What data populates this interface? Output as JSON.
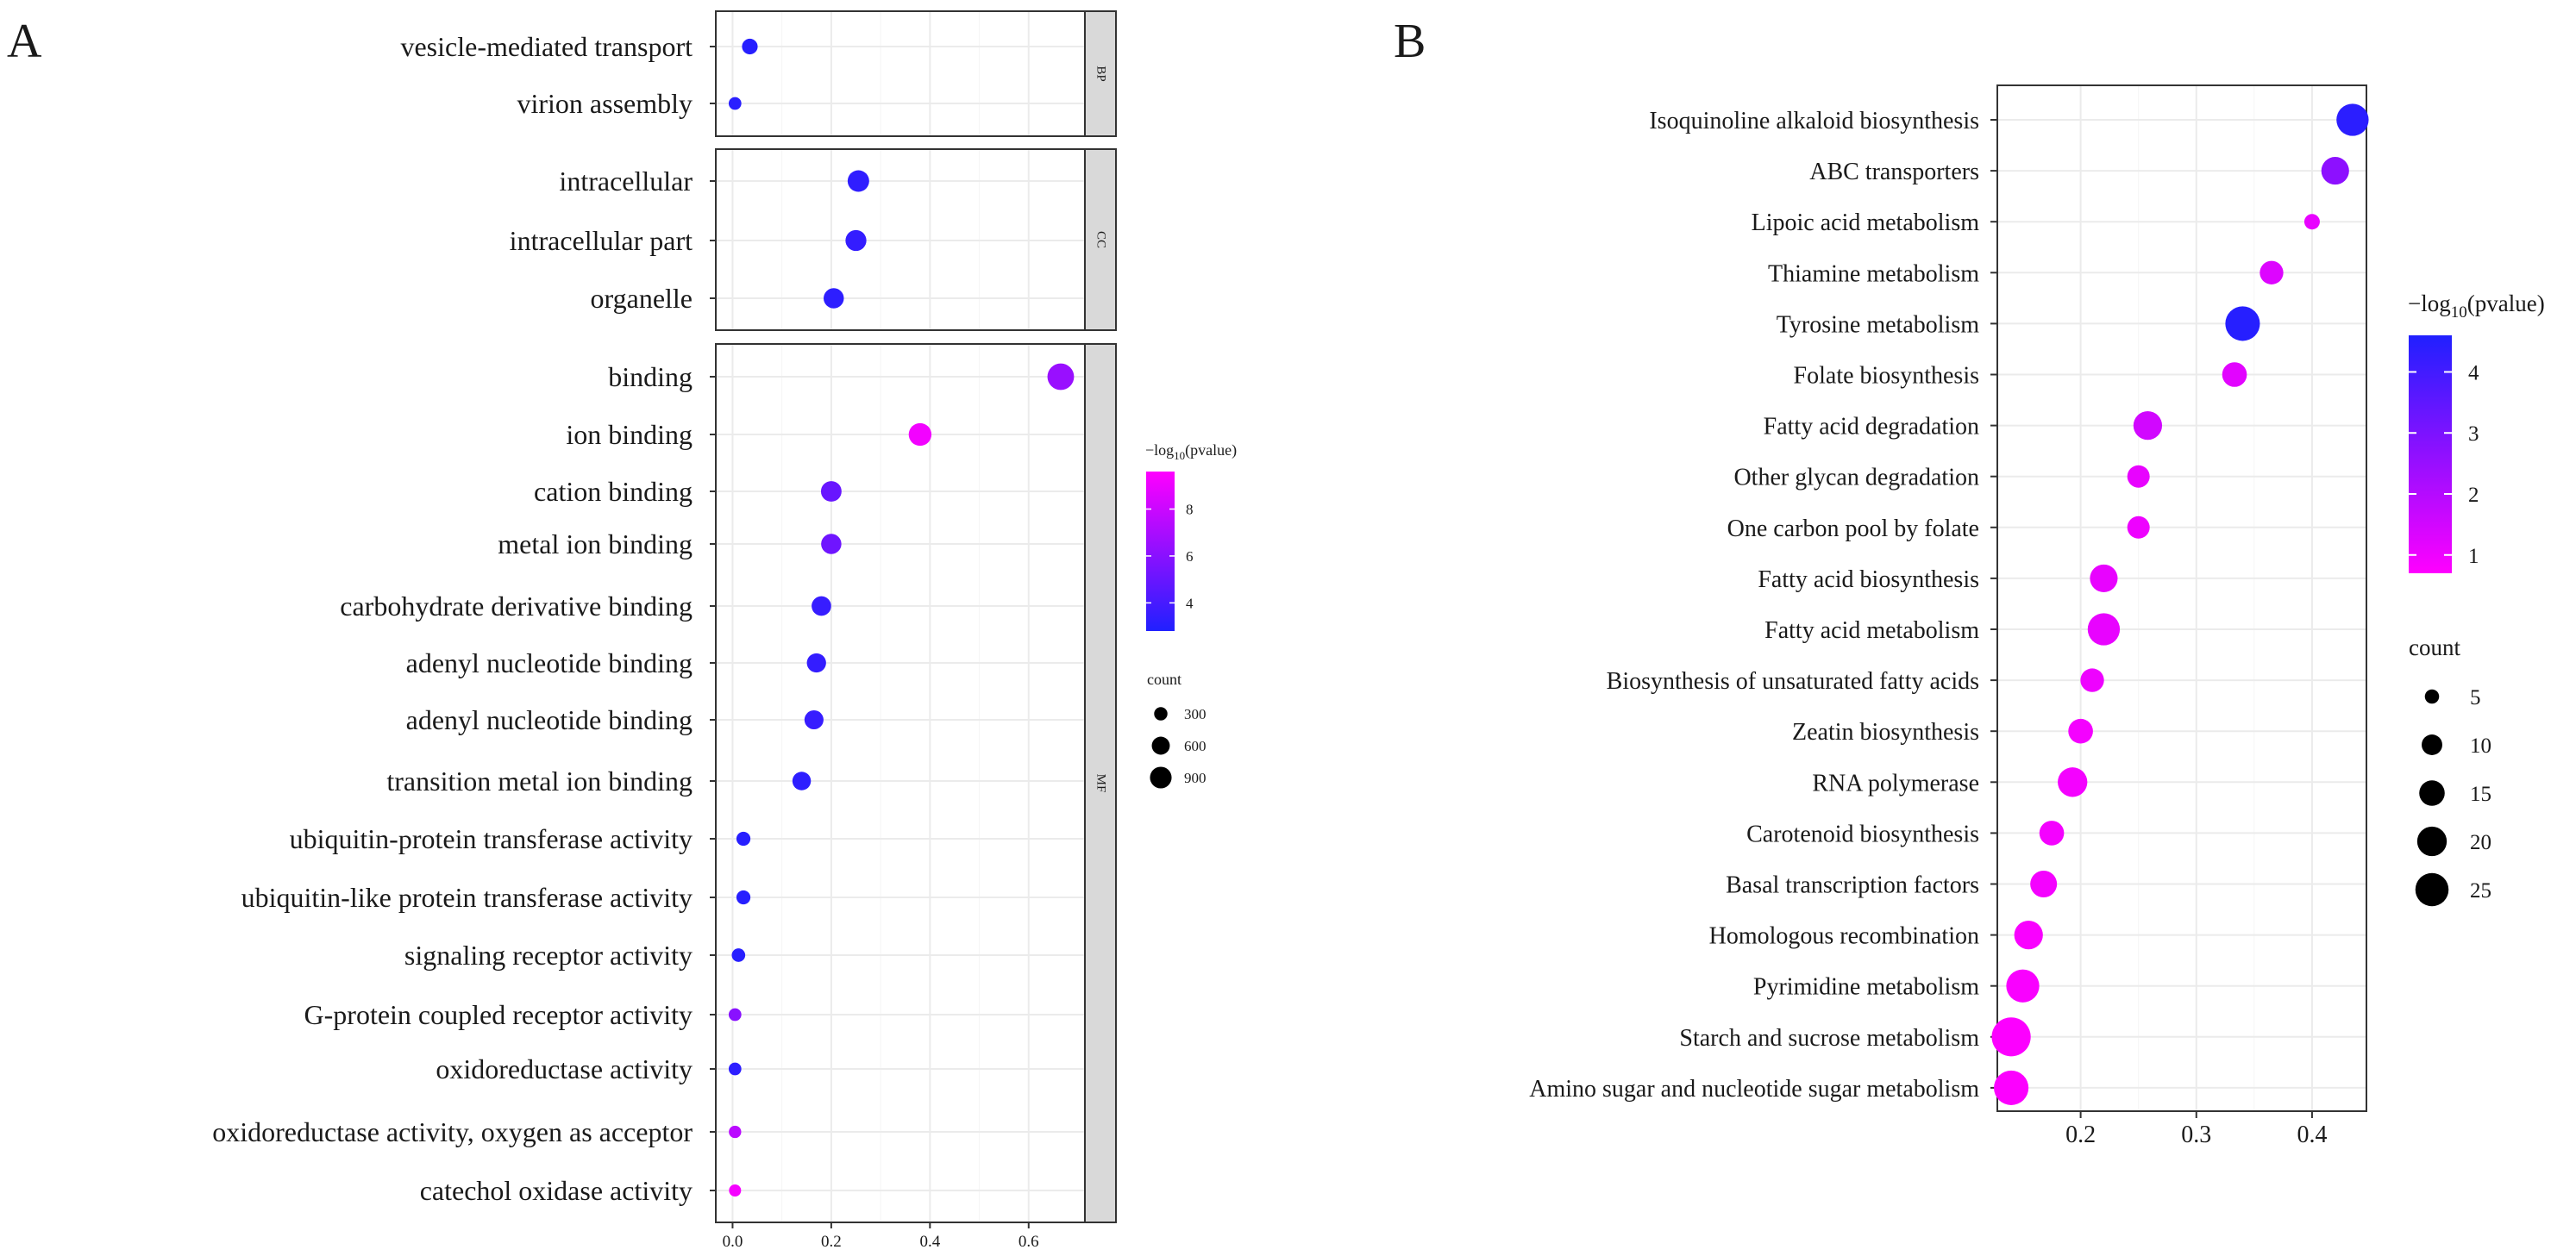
{
  "colors": {
    "low": "#ff00ff",
    "high": "#2020ff",
    "strip_fill": "#d9d9d9",
    "grid": "#ebebeb",
    "border": "#333333"
  },
  "chart_data": [
    {
      "type": "scatter",
      "panel_label": "A",
      "facets": [
        {
          "name": "BP",
          "terms": [
            {
              "label": "vesicle-mediated transport",
              "x": 0.035,
              "count": 300,
              "neglog10p": 3.0
            },
            {
              "label": "virion assembly",
              "x": 0.005,
              "count": 180,
              "neglog10p": 3.1
            }
          ]
        },
        {
          "name": "CC",
          "terms": [
            {
              "label": "intracellular",
              "x": 0.255,
              "count": 620,
              "neglog10p": 3.3
            },
            {
              "label": "intracellular part",
              "x": 0.25,
              "count": 580,
              "neglog10p": 3.4
            },
            {
              "label": "organelle",
              "x": 0.205,
              "count": 540,
              "neglog10p": 3.2
            }
          ]
        },
        {
          "name": "MF",
          "terms": [
            {
              "label": "binding",
              "x": 0.665,
              "count": 990,
              "neglog10p": 6.5
            },
            {
              "label": "ion binding",
              "x": 0.38,
              "count": 700,
              "neglog10p": 9.2
            },
            {
              "label": "cation binding",
              "x": 0.2,
              "count": 560,
              "neglog10p": 5.0
            },
            {
              "label": "metal ion binding",
              "x": 0.2,
              "count": 540,
              "neglog10p": 5.2
            },
            {
              "label": "carbohydrate derivative binding",
              "x": 0.18,
              "count": 500,
              "neglog10p": 3.5
            },
            {
              "label": "adenyl nucleotide binding",
              "x": 0.17,
              "count": 480,
              "neglog10p": 3.4
            },
            {
              "label": "adenyl nucleotide binding",
              "x": 0.165,
              "count": 470,
              "neglog10p": 3.5
            },
            {
              "label": "transition metal ion binding",
              "x": 0.14,
              "count": 440,
              "neglog10p": 3.2
            },
            {
              "label": "ubiquitin-protein transferase activity",
              "x": 0.022,
              "count": 230,
              "neglog10p": 3.0
            },
            {
              "label": "ubiquitin-like protein transferase activity",
              "x": 0.022,
              "count": 230,
              "neglog10p": 3.0
            },
            {
              "label": "signaling receptor activity",
              "x": 0.012,
              "count": 210,
              "neglog10p": 3.0
            },
            {
              "label": "G-protein coupled receptor activity",
              "x": 0.005,
              "count": 180,
              "neglog10p": 6.0
            },
            {
              "label": "oxidoreductase activity",
              "x": 0.005,
              "count": 180,
              "neglog10p": 3.2
            },
            {
              "label": "oxidoreductase activity, oxygen as acceptor",
              "x": 0.005,
              "count": 170,
              "neglog10p": 7.5
            },
            {
              "label": "catechol oxidase activity",
              "x": 0.005,
              "count": 160,
              "neglog10p": 9.3
            }
          ]
        }
      ],
      "xlim": [
        -0.02,
        0.7
      ],
      "xticks": [
        "0.0",
        "0.2",
        "0.4",
        "0.6"
      ],
      "xtick_values": [
        0,
        0.2,
        0.4,
        0.6
      ],
      "legend_color": {
        "title_prefix": "−log",
        "title_sub": "10",
        "title_suffix": "(pvalue)",
        "min": 2.8,
        "max": 9.6,
        "ticks": [
          {
            "value": 8,
            "label": "8"
          },
          {
            "value": 6,
            "label": "6"
          },
          {
            "value": 4,
            "label": "4"
          }
        ]
      },
      "legend_size": {
        "title": "count",
        "items": [
          {
            "value": 300,
            "label": "300"
          },
          {
            "value": 600,
            "label": "600"
          },
          {
            "value": 900,
            "label": "900"
          }
        ]
      },
      "size_range": [
        160,
        1000
      ]
    },
    {
      "type": "scatter",
      "panel_label": "B",
      "terms": [
        {
          "label": "Isoquinoline alkaloid biosynthesis",
          "x": 0.435,
          "count": 20,
          "neglog10p": 4.4
        },
        {
          "label": "ABC transporters",
          "x": 0.42,
          "count": 15,
          "neglog10p": 2.7
        },
        {
          "label": "Lipoic acid metabolism",
          "x": 0.4,
          "count": 5,
          "neglog10p": 1.1
        },
        {
          "label": "Thiamine metabolism",
          "x": 0.365,
          "count": 11,
          "neglog10p": 1.3
        },
        {
          "label": "Tyrosine metabolism",
          "x": 0.34,
          "count": 23,
          "neglog10p": 4.5
        },
        {
          "label": "Folate biosynthesis",
          "x": 0.333,
          "count": 12,
          "neglog10p": 1.2
        },
        {
          "label": "Fatty acid degradation",
          "x": 0.258,
          "count": 16,
          "neglog10p": 1.5
        },
        {
          "label": "Other glycan degradation",
          "x": 0.25,
          "count": 10,
          "neglog10p": 1.1
        },
        {
          "label": "One carbon pool by folate",
          "x": 0.25,
          "count": 10,
          "neglog10p": 1.0
        },
        {
          "label": "Fatty acid biosynthesis",
          "x": 0.22,
          "count": 15,
          "neglog10p": 1.1
        },
        {
          "label": "Fatty acid metabolism",
          "x": 0.22,
          "count": 20,
          "neglog10p": 1.1
        },
        {
          "label": "Biosynthesis of unsaturated fatty acids",
          "x": 0.21,
          "count": 11,
          "neglog10p": 1.0
        },
        {
          "label": "Zeatin biosynthesis",
          "x": 0.2,
          "count": 12,
          "neglog10p": 0.9
        },
        {
          "label": "RNA polymerase",
          "x": 0.193,
          "count": 17,
          "neglog10p": 0.9
        },
        {
          "label": "Carotenoid biosynthesis",
          "x": 0.175,
          "count": 12,
          "neglog10p": 0.9
        },
        {
          "label": "Basal transcription factors",
          "x": 0.168,
          "count": 14,
          "neglog10p": 0.9
        },
        {
          "label": "Homologous recombination",
          "x": 0.155,
          "count": 16,
          "neglog10p": 0.8
        },
        {
          "label": "Pyrimidine metabolism",
          "x": 0.15,
          "count": 21,
          "neglog10p": 0.8
        },
        {
          "label": "Starch and sucrose metabolism",
          "x": 0.14,
          "count": 29,
          "neglog10p": 0.75
        },
        {
          "label": "Amino sugar and nucleotide sugar metabolism",
          "x": 0.14,
          "count": 23,
          "neglog10p": 0.75
        }
      ],
      "xlim": [
        0.128,
        0.447
      ],
      "xticks": [
        "0.2",
        "0.3",
        "0.4"
      ],
      "xtick_values": [
        0.2,
        0.3,
        0.4
      ],
      "legend_color": {
        "title_prefix": "−log",
        "title_sub": "10",
        "title_suffix": "(pvalue)",
        "min": 0.7,
        "max": 4.6,
        "ticks": [
          {
            "value": 4,
            "label": "4"
          },
          {
            "value": 3,
            "label": "3"
          },
          {
            "value": 2,
            "label": "2"
          },
          {
            "value": 1,
            "label": "1"
          }
        ]
      },
      "legend_size": {
        "title": "count",
        "items": [
          {
            "value": 5,
            "label": "5"
          },
          {
            "value": 10,
            "label": "10"
          },
          {
            "value": 15,
            "label": "15"
          },
          {
            "value": 20,
            "label": "20"
          },
          {
            "value": 25,
            "label": "25"
          }
        ]
      },
      "size_range": [
        5,
        30
      ]
    }
  ]
}
